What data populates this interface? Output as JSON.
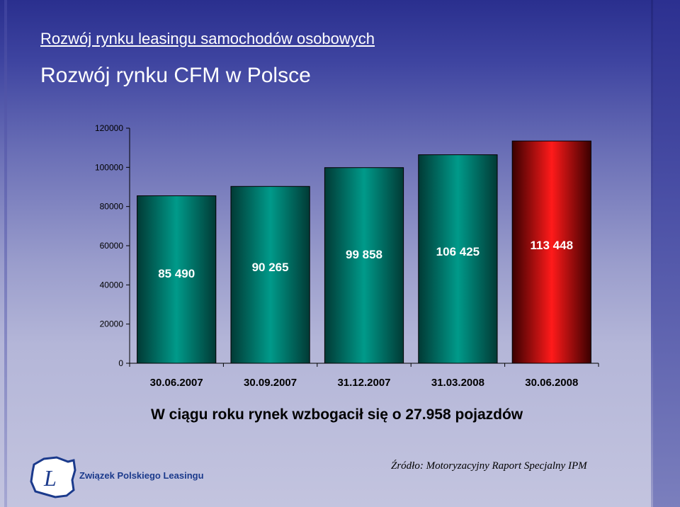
{
  "slide": {
    "title": "Rozwój rynku leasingu samochodów osobowych",
    "subtitle": "Rozwój rynku CFM w Polsce",
    "summary": "W ciągu roku rynek wzbogacił się o 27.958 pojazdów",
    "source": "Źródło: Motoryzacyjny Raport Specjalny IPM",
    "logo": {
      "text": "Związek Polskiego Leasingu",
      "icon": "poland-map-L-logo"
    }
  },
  "colors": {
    "bar_default": "#007f73",
    "bar_highlight": "#ff0000",
    "title_text": "#ffffff"
  },
  "chart_data": {
    "type": "bar",
    "title": "",
    "xlabel": "",
    "ylabel": "",
    "categories": [
      "30.06.2007",
      "30.09.2007",
      "31.12.2007",
      "31.03.2008",
      "30.06.2008"
    ],
    "values": [
      85490,
      90265,
      99858,
      106425,
      113448
    ],
    "data_labels": [
      "85 490",
      "90 265",
      "99 858",
      "106 425",
      "113 448"
    ],
    "yticks": [
      0,
      20000,
      40000,
      60000,
      80000,
      100000,
      120000
    ],
    "ytick_labels": [
      "0",
      "20000",
      "40000",
      "60000",
      "80000",
      "100000",
      "120000"
    ],
    "ylim": [
      0,
      120000
    ],
    "grid": false,
    "legend": "none",
    "highlight_index": 4
  }
}
